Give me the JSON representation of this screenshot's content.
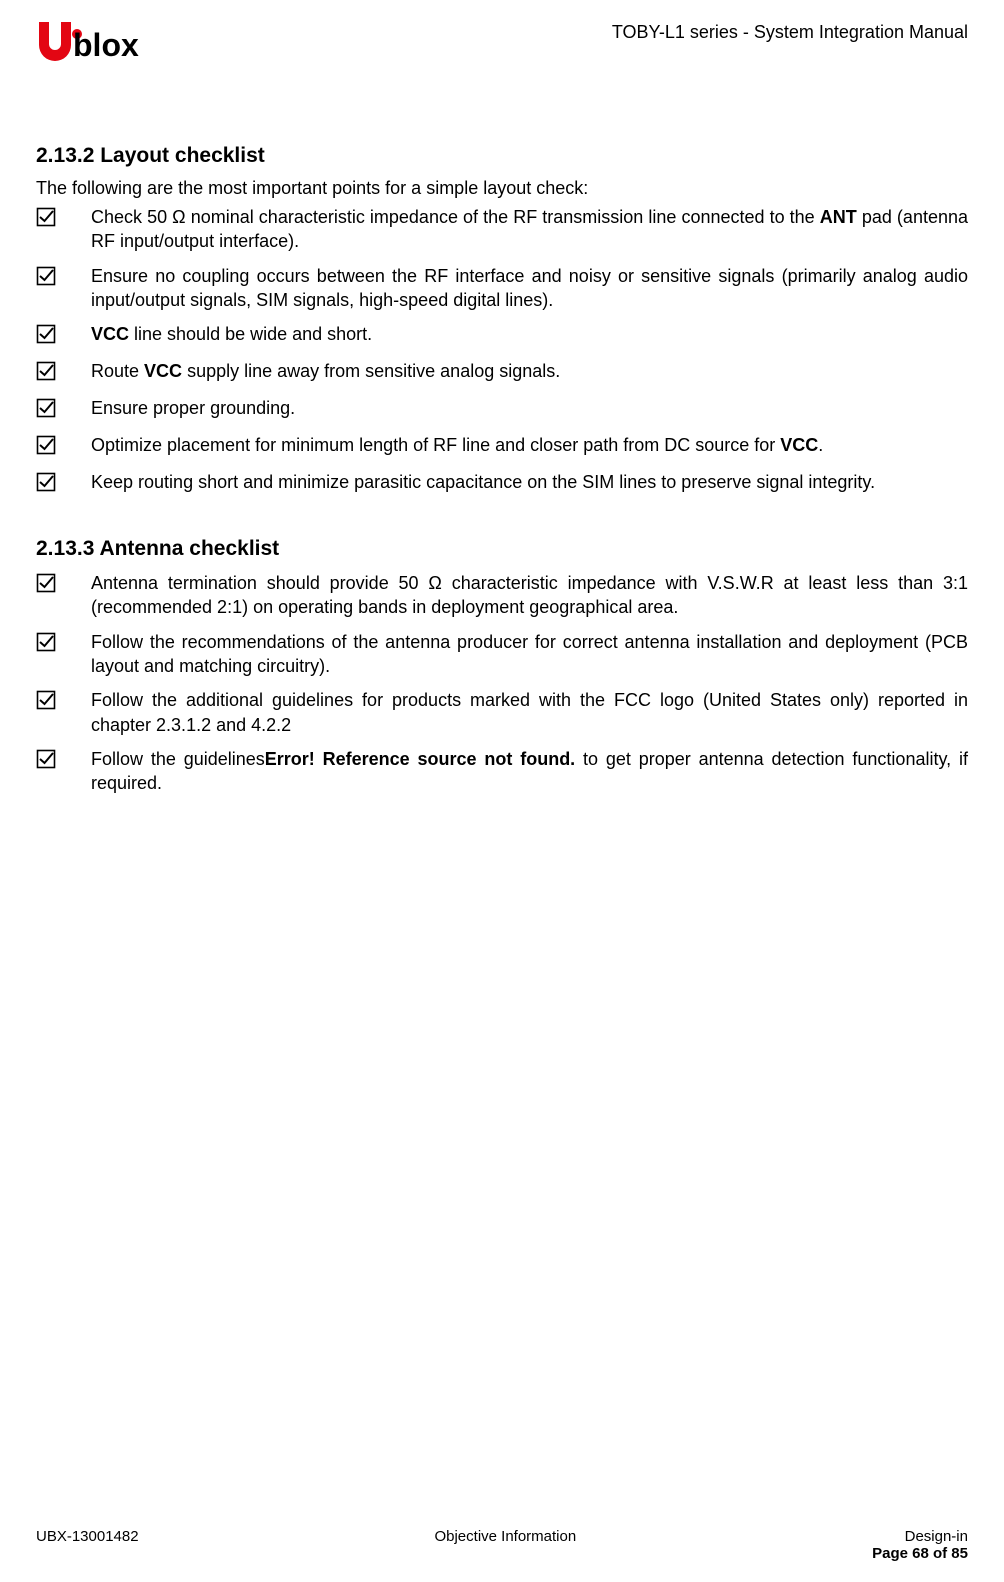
{
  "colors": {
    "logo_red": "#e30613",
    "text": "#000000",
    "background": "#ffffff"
  },
  "typography": {
    "body_fontsize_pt": 13,
    "heading_fontsize_pt": 16,
    "footer_fontsize_pt": 11,
    "font_family": "Segoe UI / Arial"
  },
  "header": {
    "logo_text": "blox",
    "doc_title": "TOBY-L1 series - System Integration Manual"
  },
  "section1": {
    "heading": "2.13.2 Layout checklist",
    "intro": "The following are the most important points for a simple layout check:",
    "items": [
      {
        "html": "Check 50 Ω nominal characteristic impedance of the RF transmission line connected to the <b>ANT</b> pad (antenna RF input/output interface)."
      },
      {
        "html": "Ensure no coupling occurs between the RF interface and noisy or sensitive signals (primarily analog audio input/output signals, SIM signals, high-speed digital lines)."
      },
      {
        "html": "<b>VCC</b> line should be wide and short."
      },
      {
        "html": "Route <b>VCC</b> supply line away from sensitive analog signals."
      },
      {
        "html": "Ensure proper grounding."
      },
      {
        "html": "Optimize placement for minimum length of RF line and closer path from DC source for <b>VCC</b>."
      },
      {
        "html": "Keep routing short and minimize parasitic capacitance on the SIM lines to preserve signal integrity."
      }
    ]
  },
  "section2": {
    "heading": "2.13.3 Antenna checklist",
    "items": [
      {
        "html": "Antenna termination should provide 50 Ω characteristic impedance with V.S.W.R at least less than 3:1 (recommended 2:1) on operating bands in deployment geographical area."
      },
      {
        "html": "Follow the recommendations of the antenna producer for correct antenna installation and deployment (PCB layout and matching circuitry)."
      },
      {
        "html": "Follow the additional guidelines for products marked with the FCC logo (United States only) reported in chapter 2.3.1.2 and 4.2.2"
      },
      {
        "html": "Follow the guidelines<b>Error! Reference source not found.</b> to get proper antenna detection functionality, if required."
      }
    ]
  },
  "footer": {
    "left": "UBX-13001482",
    "center": "Objective Information",
    "right_top": "Design-in",
    "right_bottom": "Page 68 of 85"
  }
}
